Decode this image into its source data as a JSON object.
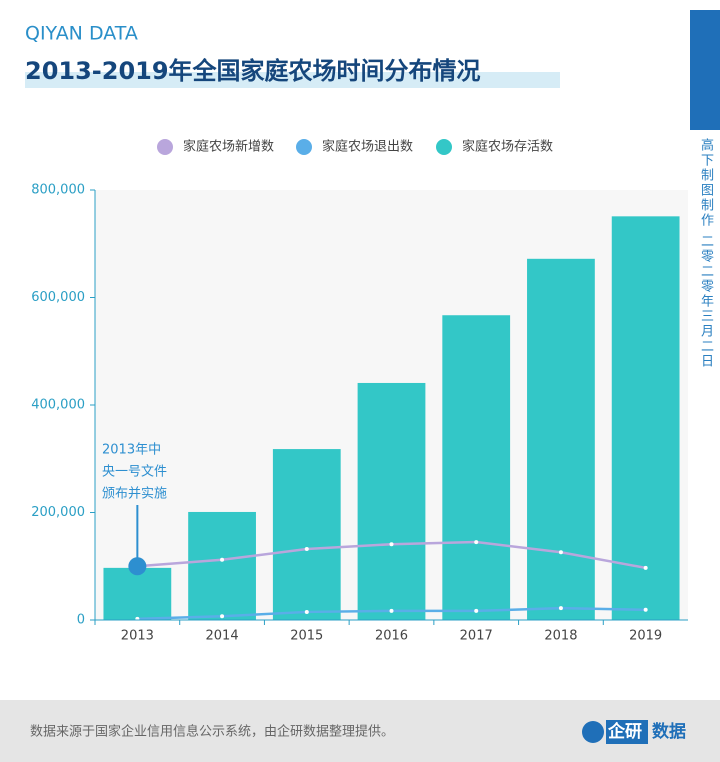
{
  "header": {
    "brand": "QIYAN DATA",
    "side_note": "高下制图制作 二零二零年三月二日"
  },
  "chart_data": {
    "type": "combo",
    "title": "2013-2019年全国家庭农场时间分布情况",
    "categories": [
      "2013",
      "2014",
      "2015",
      "2016",
      "2017",
      "2018",
      "2019"
    ],
    "series": [
      {
        "name": "家庭农场新增数",
        "type": "line",
        "color": "#b9a6dc",
        "values": [
          100000,
          112000,
          132000,
          141000,
          145000,
          126000,
          97000
        ]
      },
      {
        "name": "家庭农场退出数",
        "type": "line",
        "color": "#5aaee8",
        "values": [
          2000,
          7000,
          15000,
          17000,
          17000,
          22000,
          19000
        ]
      },
      {
        "name": "家庭农场存活数",
        "type": "bar",
        "color": "#33c7c7",
        "values": [
          97000,
          201000,
          318000,
          441000,
          567000,
          672000,
          751000
        ]
      }
    ],
    "ylim": [
      0,
      800000
    ],
    "yticks": [
      0,
      {
        "value": 200000,
        "label": "200,000"
      },
      {
        "value": 400000,
        "label": "400,000"
      },
      {
        "value": 600000,
        "label": "600,000"
      },
      {
        "value": 800000,
        "label": "800,000"
      }
    ],
    "grid": false,
    "legend": "top",
    "annotation": {
      "lines": [
        "2013年中",
        "央一号文件",
        "颁布并实施"
      ],
      "color": "#2d8fd0"
    }
  },
  "footer": {
    "source": "数据来源于国家企业信用信息公示系统，由企研数据整理提供。",
    "logo_a": "企研",
    "logo_b": "数据"
  }
}
